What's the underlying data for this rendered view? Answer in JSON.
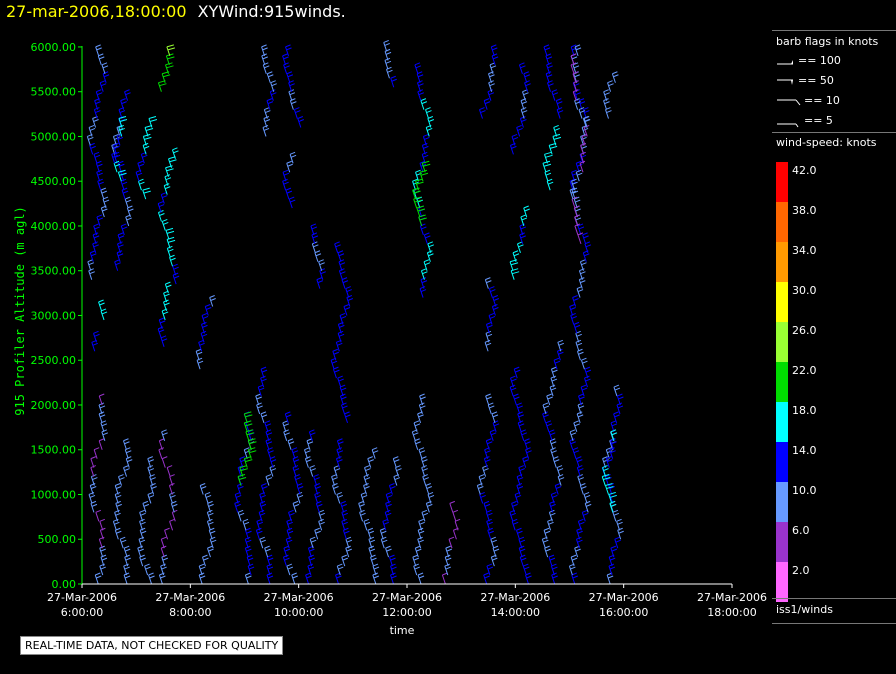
{
  "header": {
    "date": "27-mar-2006,18:00:00",
    "title": "XYWind:915winds."
  },
  "legend": {
    "barb_heading": "barb flags in knots",
    "barb_flags": [
      "== 100",
      "== 50",
      "== 10",
      "== 5"
    ],
    "speed_heading": "wind-speed: knots",
    "speed_levels": [
      {
        "label": "42.0",
        "color": "#ff0000"
      },
      {
        "label": "38.0",
        "color": "#ff6600"
      },
      {
        "label": "34.0",
        "color": "#ff9900"
      },
      {
        "label": "30.0",
        "color": "#ffff00"
      },
      {
        "label": "26.0",
        "color": "#99ff33"
      },
      {
        "label": "22.0",
        "color": "#00dd00"
      },
      {
        "label": "18.0",
        "color": "#00ffff"
      },
      {
        "label": "14.0",
        "color": "#0000ff"
      },
      {
        "label": "10.0",
        "color": "#6699ff"
      },
      {
        "label": "6.0",
        "color": "#9933cc"
      },
      {
        "label": "2.0",
        "color": "#ff66ff"
      }
    ],
    "source": "iss1/winds"
  },
  "disclaimer": "REAL-TIME DATA, NOT CHECKED FOR QUALITY",
  "chart_data": {
    "type": "scatter",
    "title": "XYWind:915winds.",
    "xlabel": "time",
    "ylabel": "915 Profiler Altitude (m agl)",
    "xlim_hours": [
      6,
      18
    ],
    "ylim": [
      0,
      6100
    ],
    "x_ticks": [
      {
        "h": 6,
        "date": "27-Mar-2006",
        "time": "6:00:00"
      },
      {
        "h": 8,
        "date": "27-Mar-2006",
        "time": "8:00:00"
      },
      {
        "h": 10,
        "date": "27-Mar-2006",
        "time": "10:00:00"
      },
      {
        "h": 12,
        "date": "27-Mar-2006",
        "time": "12:00:00"
      },
      {
        "h": 14,
        "date": "27-Mar-2006",
        "time": "14:00:00"
      },
      {
        "h": 16,
        "date": "27-Mar-2006",
        "time": "16:00:00"
      },
      {
        "h": 18,
        "date": "27-Mar-2006",
        "time": "18:00:00"
      }
    ],
    "y_ticks": [
      "0.00",
      "500.00",
      "1000.00",
      "1500.00",
      "2000.00",
      "2500.00",
      "3000.00",
      "3500.00",
      "4000.00",
      "4500.00",
      "5000.00",
      "5500.00",
      "6000.00"
    ],
    "y_tick_values": [
      0,
      500,
      1000,
      1500,
      2000,
      2500,
      3000,
      3500,
      4000,
      4500,
      5000,
      5500,
      6000
    ],
    "colors": {
      "axis": "#00ff00",
      "tick_text": "#00ff00"
    },
    "profiles": [
      {
        "t": 6.3,
        "segs": [
          [
            0,
            2000,
            8
          ],
          [
            2600,
            2750,
            13
          ],
          [
            2950,
            3100,
            16
          ],
          [
            3400,
            5950,
            13
          ]
        ]
      },
      {
        "t": 6.75,
        "segs": [
          [
            0,
            1500,
            10
          ],
          [
            3500,
            5450,
            13
          ],
          [
            4500,
            5100,
            17
          ]
        ]
      },
      {
        "t": 7.2,
        "segs": [
          [
            0,
            1350,
            10
          ],
          [
            4300,
            5150,
            17
          ]
        ]
      },
      {
        "t": 7.6,
        "segs": [
          [
            0,
            1650,
            7
          ],
          [
            2650,
            3300,
            16
          ],
          [
            3350,
            4800,
            17
          ],
          [
            5500,
            5950,
            24
          ]
        ]
      },
      {
        "t": 8.3,
        "segs": [
          [
            0,
            1050,
            10
          ],
          [
            2400,
            3150,
            13
          ]
        ]
      },
      {
        "t": 9.0,
        "segs": [
          [
            0,
            1850,
            13
          ],
          [
            1100,
            1800,
            22
          ]
        ]
      },
      {
        "t": 9.4,
        "segs": [
          [
            0,
            2300,
            13
          ],
          [
            5000,
            5950,
            11
          ]
        ]
      },
      {
        "t": 9.9,
        "segs": [
          [
            0,
            1800,
            13
          ],
          [
            4200,
            4750,
            13
          ],
          [
            5100,
            5950,
            13
          ]
        ]
      },
      {
        "t": 10.3,
        "segs": [
          [
            0,
            1600,
            12
          ],
          [
            3300,
            3900,
            13
          ]
        ]
      },
      {
        "t": 10.8,
        "segs": [
          [
            0,
            1550,
            12
          ],
          [
            1800,
            3750,
            14
          ]
        ]
      },
      {
        "t": 11.3,
        "segs": [
          [
            0,
            1450,
            10
          ]
        ]
      },
      {
        "t": 11.7,
        "segs": [
          [
            0,
            1300,
            13
          ],
          [
            5550,
            5950,
            12
          ]
        ]
      },
      {
        "t": 12.3,
        "segs": [
          [
            0,
            2050,
            10
          ],
          [
            3200,
            5750,
            16
          ],
          [
            4000,
            4600,
            22
          ]
        ]
      },
      {
        "t": 12.8,
        "segs": [
          [
            0,
            850,
            7
          ]
        ]
      },
      {
        "t": 13.5,
        "segs": [
          [
            0,
            2000,
            13
          ],
          [
            2600,
            3300,
            13
          ],
          [
            5200,
            5950,
            13
          ]
        ]
      },
      {
        "t": 14.1,
        "segs": [
          [
            0,
            2350,
            14
          ],
          [
            3400,
            4100,
            17
          ],
          [
            4800,
            5750,
            13
          ]
        ]
      },
      {
        "t": 14.7,
        "segs": [
          [
            0,
            2650,
            11
          ],
          [
            4400,
            5000,
            18
          ],
          [
            5200,
            5950,
            14
          ]
        ]
      },
      {
        "t": 15.2,
        "segs": [
          [
            0,
            5950,
            12
          ],
          [
            3800,
            5900,
            7
          ]
        ]
      },
      {
        "t": 15.8,
        "segs": [
          [
            0,
            2150,
            12
          ],
          [
            800,
            1600,
            17
          ],
          [
            5200,
            5650,
            10
          ]
        ]
      }
    ]
  }
}
